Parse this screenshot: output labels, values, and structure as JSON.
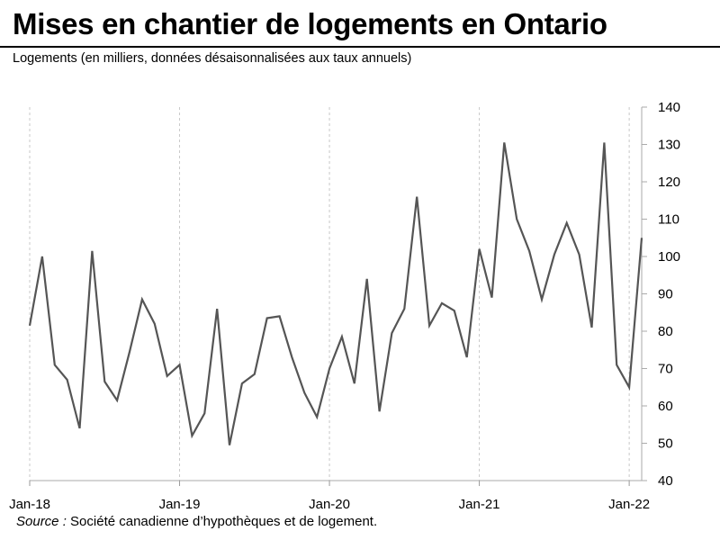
{
  "header": {
    "title": "Mises en chantier de logements en Ontario",
    "subtitle": "Logements (en milliers, données désaisonnalisées aux taux annuels)"
  },
  "footer": {
    "source_label": "Source :",
    "source_text": " Société canadienne d’hypothèques  et de logement."
  },
  "chart_data": {
    "type": "line",
    "title": "Mises en chantier de logements en Ontario",
    "ylabel": "Logements (en milliers, données désaisonnalisées aux taux annuels)",
    "xlabel": "",
    "ylim": [
      40,
      140
    ],
    "yticks": [
      40,
      50,
      60,
      70,
      80,
      90,
      100,
      110,
      120,
      130,
      140
    ],
    "y_axis_position": "right",
    "x_tick_labels": [
      "Jan-18",
      "Jan-19",
      "Jan-20",
      "Jan-21",
      "Jan-22"
    ],
    "x_tick_indices": [
      0,
      12,
      24,
      36,
      48
    ],
    "grid": "vertical dashed at January",
    "line_color": "#555555",
    "series": [
      {
        "values": [
          81.5,
          100,
          71,
          67,
          54,
          101.5,
          66.5,
          61.5,
          74.5,
          88.5,
          82,
          68,
          71,
          52,
          58,
          86,
          49.5,
          66,
          68.5,
          83.5,
          84,
          73,
          63.5,
          57,
          70,
          78.5,
          66,
          94,
          58.5,
          79.5,
          86,
          116,
          81.5,
          87.5,
          85.5,
          73,
          102,
          89,
          130.5,
          110,
          101.5,
          88.5,
          100.5,
          109,
          100.5,
          81,
          130.5,
          71,
          65,
          105
        ]
      }
    ]
  }
}
